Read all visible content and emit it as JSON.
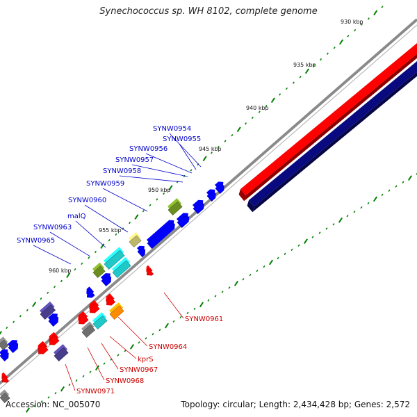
{
  "map": {
    "title": "Synechococcus sp. WH 8102, complete genome",
    "accession_text": "Accession: NC_005070",
    "summary_text": "Topology: circular; Length: 2,434,428 bp; Genes: 2,572"
  },
  "colors": {
    "backbone": "#8a8a8a",
    "red_strand": "#ff0000",
    "blue_strand": "#0a0a80",
    "tick": "#008000",
    "forward_gene": "#0000ff",
    "reverse_gene": "#ff0000",
    "olive": "#6b8e23",
    "khaki": "#bdb76b",
    "cyan": "#20c8c8",
    "slate": "#483d8b",
    "orange": "#ff8c00",
    "gray": "#6e6e6e",
    "forward_label": "#0000cc",
    "reverse_label": "#cc0000"
  },
  "kbp_labels": [
    "930 kbp",
    "935 kbp",
    "940 kbp",
    "945 kbp",
    "950 kbp",
    "955 kbp",
    "960 kbp"
  ],
  "forward_gene_labels": [
    "SYNW0954",
    "SYNW0955",
    "SYNW0956",
    "SYNW0957",
    "SYNW0958",
    "SYNW0959",
    "SYNW0960",
    "malQ",
    "SYNW0963",
    "SYNW0965"
  ],
  "reverse_gene_labels": [
    "SYNW0961",
    "SYNW0964",
    "kprS",
    "SYNW0967",
    "SYNW0968",
    "SYNW0971"
  ]
}
